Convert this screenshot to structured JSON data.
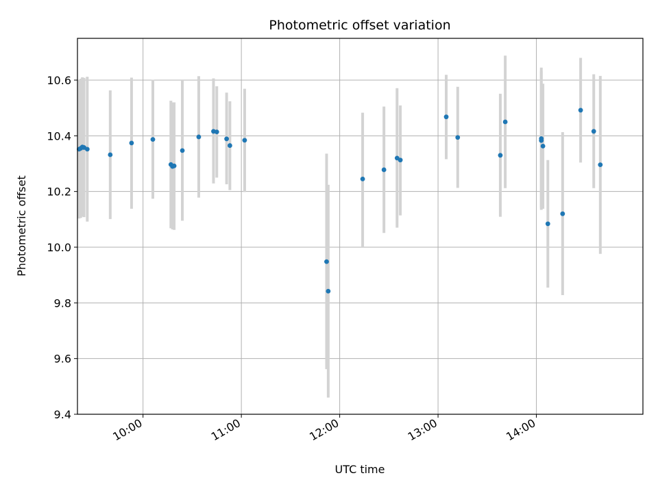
{
  "chart_data": {
    "type": "scatter",
    "title": "Photometric offset variation",
    "xlabel": "UTC time",
    "ylabel": "Photometric offset",
    "ylim": [
      9.4,
      10.75
    ],
    "xlim": [
      "09:20",
      "15:05"
    ],
    "grid": true,
    "x_ticks": [
      "10:00",
      "11:00",
      "12:00",
      "13:00",
      "14:00"
    ],
    "y_ticks": [
      "9.4",
      "9.6",
      "9.8",
      "10.0",
      "10.2",
      "10.4",
      "10.6"
    ],
    "colors": {
      "point": "#1f77b4",
      "errorbar": "#d3d3d3",
      "grid": "#b0b0b0"
    },
    "points": [
      {
        "x": "09:21",
        "y": 10.352,
        "ylow": 10.103,
        "yhigh": 10.601
      },
      {
        "x": "09:22",
        "y": 10.355,
        "ylow": 10.105,
        "yhigh": 10.605
      },
      {
        "x": "09:23",
        "y": 10.36,
        "ylow": 10.11,
        "yhigh": 10.61
      },
      {
        "x": "09:24",
        "y": 10.358,
        "ylow": 10.108,
        "yhigh": 10.608
      },
      {
        "x": "09:26",
        "y": 10.352,
        "ylow": 10.092,
        "yhigh": 10.612
      },
      {
        "x": "09:40",
        "y": 10.332,
        "ylow": 10.101,
        "yhigh": 10.563
      },
      {
        "x": "09:53",
        "y": 10.374,
        "ylow": 10.138,
        "yhigh": 10.609
      },
      {
        "x": "10:06",
        "y": 10.387,
        "ylow": 10.174,
        "yhigh": 10.601
      },
      {
        "x": "10:17",
        "y": 10.297,
        "ylow": 10.068,
        "yhigh": 10.526
      },
      {
        "x": "10:18",
        "y": 10.29,
        "ylow": 10.064,
        "yhigh": 10.52
      },
      {
        "x": "10:19",
        "y": 10.292,
        "ylow": 10.062,
        "yhigh": 10.52
      },
      {
        "x": "10:24",
        "y": 10.347,
        "ylow": 10.095,
        "yhigh": 10.6
      },
      {
        "x": "10:34",
        "y": 10.396,
        "ylow": 10.178,
        "yhigh": 10.614
      },
      {
        "x": "10:43",
        "y": 10.416,
        "ylow": 10.229,
        "yhigh": 10.606
      },
      {
        "x": "10:45",
        "y": 10.414,
        "ylow": 10.25,
        "yhigh": 10.578
      },
      {
        "x": "10:51",
        "y": 10.389,
        "ylow": 10.226,
        "yhigh": 10.555
      },
      {
        "x": "10:53",
        "y": 10.365,
        "ylow": 10.205,
        "yhigh": 10.524
      },
      {
        "x": "11:02",
        "y": 10.384,
        "ylow": 10.198,
        "yhigh": 10.569
      },
      {
        "x": "11:52",
        "y": 9.948,
        "ylow": 9.562,
        "yhigh": 10.336
      },
      {
        "x": "11:53",
        "y": 9.842,
        "ylow": 9.46,
        "yhigh": 10.224
      },
      {
        "x": "12:14",
        "y": 10.245,
        "ylow": 10.002,
        "yhigh": 10.483
      },
      {
        "x": "12:27",
        "y": 10.278,
        "ylow": 10.051,
        "yhigh": 10.505
      },
      {
        "x": "12:35",
        "y": 10.32,
        "ylow": 10.07,
        "yhigh": 10.571
      },
      {
        "x": "12:37",
        "y": 10.313,
        "ylow": 10.114,
        "yhigh": 10.509
      },
      {
        "x": "13:05",
        "y": 10.468,
        "ylow": 10.316,
        "yhigh": 10.619
      },
      {
        "x": "13:12",
        "y": 10.394,
        "ylow": 10.213,
        "yhigh": 10.576
      },
      {
        "x": "13:38",
        "y": 10.33,
        "ylow": 10.109,
        "yhigh": 10.551
      },
      {
        "x": "13:41",
        "y": 10.45,
        "ylow": 10.212,
        "yhigh": 10.688
      },
      {
        "x": "14:03",
        "y": 10.383,
        "ylow": 10.134,
        "yhigh": 10.633
      },
      {
        "x": "14:03",
        "y": 10.39,
        "ylow": 10.141,
        "yhigh": 10.645
      },
      {
        "x": "14:04",
        "y": 10.363,
        "ylow": 10.138,
        "yhigh": 10.587
      },
      {
        "x": "14:07",
        "y": 10.084,
        "ylow": 9.855,
        "yhigh": 10.313
      },
      {
        "x": "14:16",
        "y": 10.12,
        "ylow": 9.828,
        "yhigh": 10.413
      },
      {
        "x": "14:27",
        "y": 10.492,
        "ylow": 10.304,
        "yhigh": 10.68
      },
      {
        "x": "14:35",
        "y": 10.416,
        "ylow": 10.212,
        "yhigh": 10.621
      },
      {
        "x": "14:39",
        "y": 10.296,
        "ylow": 9.976,
        "yhigh": 10.615
      }
    ]
  }
}
